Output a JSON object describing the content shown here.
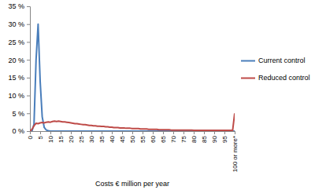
{
  "chart_data": {
    "type": "line",
    "x_label": "Costs € million per year",
    "categories": [
      "0",
      null,
      null,
      null,
      null,
      "5",
      null,
      null,
      null,
      null,
      "10",
      null,
      null,
      null,
      null,
      "15",
      null,
      null,
      null,
      null,
      "20",
      null,
      null,
      null,
      null,
      "25",
      null,
      null,
      null,
      null,
      "30",
      null,
      null,
      null,
      null,
      "35",
      null,
      null,
      null,
      null,
      "40",
      null,
      null,
      null,
      null,
      "45",
      null,
      null,
      null,
      null,
      "50",
      null,
      null,
      null,
      null,
      "55",
      null,
      null,
      null,
      null,
      "60",
      null,
      null,
      null,
      null,
      "65",
      null,
      null,
      null,
      null,
      "70",
      null,
      null,
      null,
      null,
      "75",
      null,
      null,
      null,
      null,
      "80",
      null,
      null,
      null,
      null,
      "85",
      null,
      null,
      null,
      null,
      "90",
      null,
      null,
      null,
      null,
      "95",
      null,
      null,
      null,
      null,
      "100 or more*"
    ],
    "series": [
      {
        "name": "Current control",
        "color": "#4a7ebb",
        "values": [
          0,
          0,
          2,
          20,
          30,
          14,
          4,
          1,
          0.3,
          0.1,
          0,
          0,
          0,
          0,
          0,
          0,
          0,
          0,
          0,
          0,
          0,
          0,
          0,
          0,
          0,
          0,
          0,
          0,
          0,
          0,
          0,
          0,
          0,
          0,
          0,
          0,
          0,
          0,
          0,
          0,
          0,
          0,
          0,
          0,
          0,
          0,
          0,
          0,
          0,
          0,
          0,
          0,
          0,
          0,
          0,
          0,
          0,
          0,
          0,
          0,
          0,
          0,
          0,
          0,
          0,
          0,
          0,
          0,
          0,
          0,
          0,
          0,
          0,
          0,
          0,
          0,
          0,
          0,
          0,
          0,
          0,
          0,
          0,
          0,
          0,
          0,
          0,
          0,
          0,
          0,
          0,
          0,
          0,
          0,
          0,
          0,
          0,
          0,
          0,
          0,
          0
        ]
      },
      {
        "name": "Reduced control",
        "color": "#be4b48",
        "values": [
          0,
          0.5,
          1.5,
          2.2,
          2.1,
          2.3,
          2.4,
          2.3,
          2.5,
          2.6,
          2.5,
          2.7,
          2.8,
          2.7,
          2.8,
          2.7,
          2.6,
          2.6,
          2.5,
          2.4,
          2.3,
          2.2,
          2.1,
          2.1,
          2.0,
          1.9,
          1.8,
          1.8,
          1.7,
          1.6,
          1.6,
          1.5,
          1.5,
          1.4,
          1.4,
          1.3,
          1.3,
          1.2,
          1.2,
          1.1,
          1.1,
          1.0,
          1.0,
          1.0,
          0.9,
          0.9,
          0.9,
          0.8,
          0.8,
          0.8,
          0.7,
          0.7,
          0.7,
          0.7,
          0.6,
          0.6,
          0.6,
          0.6,
          0.5,
          0.5,
          0.5,
          0.5,
          0.5,
          0.4,
          0.4,
          0.4,
          0.4,
          0.4,
          0.4,
          0.3,
          0.3,
          0.3,
          0.3,
          0.3,
          0.3,
          0.3,
          0.3,
          0.3,
          0.3,
          0.3,
          0.2,
          0.2,
          0.2,
          0.2,
          0.2,
          0.2,
          0.2,
          0.2,
          0.2,
          0.2,
          0.2,
          0.2,
          0.2,
          0.2,
          0.2,
          0.2,
          0.2,
          0.2,
          0.2,
          0.2,
          5
        ]
      }
    ],
    "ylim": [
      0,
      35
    ],
    "yticks": [
      {
        "value": 0,
        "label": "0 %"
      },
      {
        "value": 5,
        "label": "5 %"
      },
      {
        "value": 10,
        "label": "10 %"
      },
      {
        "value": 15,
        "label": "15 %"
      },
      {
        "value": 20,
        "label": "20 %"
      },
      {
        "value": 25,
        "label": "25 %"
      },
      {
        "value": 30,
        "label": "30 %"
      },
      {
        "value": 35,
        "label": "35 %"
      }
    ],
    "grid": false,
    "legend": "right"
  }
}
